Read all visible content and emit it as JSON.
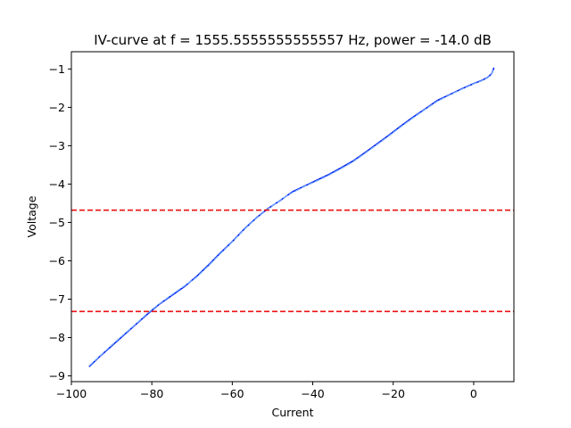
{
  "chart_data": {
    "type": "line",
    "title": "IV-curve at f = 1555.5555555555557 Hz, power = -14.0 dB",
    "xlabel": "Current",
    "ylabel": "Voltage",
    "xlim": [
      -100,
      10
    ],
    "ylim": [
      -9.15,
      -0.55
    ],
    "x_ticks": [
      -100,
      -80,
      -60,
      -40,
      -20,
      0
    ],
    "x_tick_labels": [
      "−100",
      "−80",
      "−60",
      "−40",
      "−20",
      "0"
    ],
    "y_ticks": [
      -9,
      -8,
      -7,
      -6,
      -5,
      -4,
      -3,
      -2,
      -1
    ],
    "y_tick_labels": [
      "−9",
      "−8",
      "−7",
      "−6",
      "−5",
      "−4",
      "−3",
      "−2",
      "−1"
    ],
    "grid": false,
    "series": [
      {
        "style": "solid",
        "color": "#0022ee",
        "x": [
          -95.5,
          -93,
          -90,
          -87,
          -84,
          -81,
          -78,
          -75,
          -72,
          -69,
          -66,
          -63,
          -60,
          -57,
          -54,
          -51,
          -48,
          -45,
          -42,
          -39,
          -36,
          -33,
          -30,
          -27,
          -24,
          -21,
          -18,
          -15,
          -12,
          -9,
          -6,
          -3,
          0,
          2,
          3.5,
          4.5,
          5
        ],
        "y": [
          -8.75,
          -8.5,
          -8.22,
          -7.94,
          -7.66,
          -7.38,
          -7.12,
          -6.9,
          -6.68,
          -6.42,
          -6.12,
          -5.8,
          -5.5,
          -5.17,
          -4.88,
          -4.63,
          -4.42,
          -4.2,
          -4.05,
          -3.9,
          -3.75,
          -3.58,
          -3.4,
          -3.18,
          -2.95,
          -2.72,
          -2.48,
          -2.25,
          -2.04,
          -1.82,
          -1.67,
          -1.52,
          -1.38,
          -1.3,
          -1.22,
          -1.12,
          -0.98
        ]
      },
      {
        "style": "dashed",
        "color": "#7fb0ff",
        "x": [
          -95.5,
          -93,
          -90,
          -87,
          -84,
          -81,
          -78,
          -75,
          -72,
          -69,
          -66,
          -63,
          -60,
          -57,
          -54,
          -51,
          -48,
          -45,
          -42,
          -39,
          -36,
          -33,
          -30,
          -27,
          -24,
          -21,
          -18,
          -15,
          -12,
          -9,
          -6,
          -3,
          0,
          2,
          3.5,
          4.5,
          5
        ],
        "y": [
          -8.73,
          -8.49,
          -8.2,
          -7.92,
          -7.65,
          -7.36,
          -7.11,
          -6.88,
          -6.66,
          -6.44,
          -6.14,
          -5.82,
          -5.51,
          -5.18,
          -4.89,
          -4.64,
          -4.41,
          -4.22,
          -4.06,
          -3.92,
          -3.77,
          -3.6,
          -3.42,
          -3.2,
          -2.97,
          -2.74,
          -2.5,
          -2.27,
          -2.05,
          -1.84,
          -1.68,
          -1.53,
          -1.39,
          -1.31,
          -1.23,
          -1.13,
          -0.99
        ]
      }
    ],
    "hlines": [
      {
        "y": -4.68,
        "color": "#ee1111",
        "style": "dashed"
      },
      {
        "y": -7.32,
        "color": "#ee1111",
        "style": "dashed"
      }
    ]
  }
}
